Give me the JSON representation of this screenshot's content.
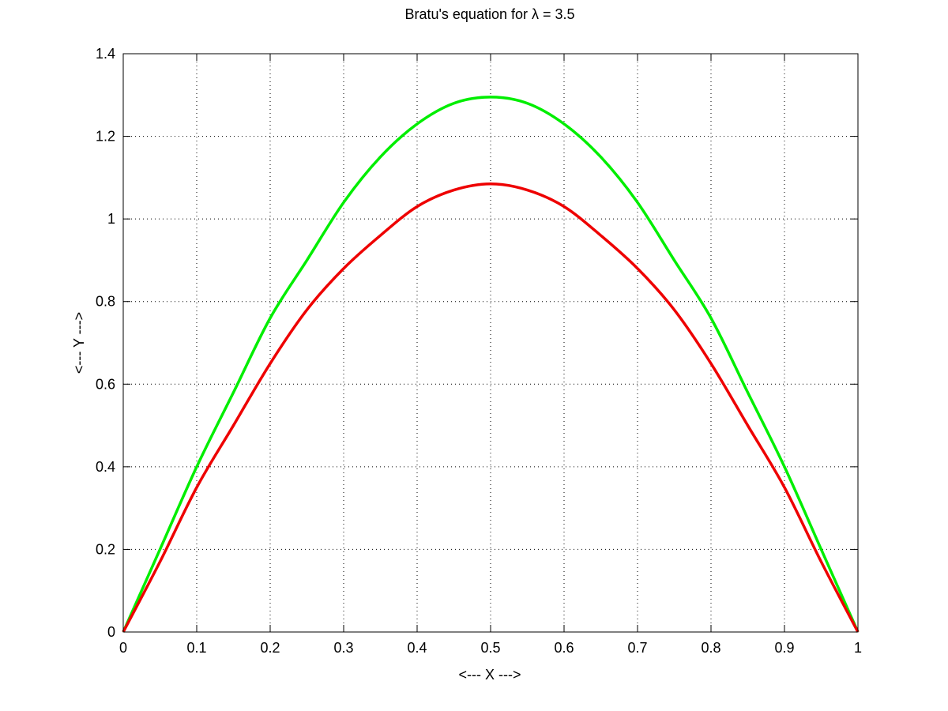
{
  "chart_data": {
    "type": "line",
    "title": "Bratu's equation for  λ = 3.5",
    "xlabel": "<--- X --->",
    "ylabel": "<--- Y --->",
    "xlim": [
      0,
      1
    ],
    "ylim": [
      0,
      1.4
    ],
    "xticks": [
      "0",
      "0.1",
      "0.2",
      "0.3",
      "0.4",
      "0.5",
      "0.6",
      "0.7",
      "0.8",
      "0.9",
      "1"
    ],
    "yticks": [
      "0",
      "0.2",
      "0.4",
      "0.6",
      "0.8",
      "1",
      "1.2",
      "1.4"
    ],
    "grid": true,
    "x": [
      0,
      0.05,
      0.1,
      0.15,
      0.2,
      0.25,
      0.3,
      0.35,
      0.4,
      0.45,
      0.5,
      0.55,
      0.6,
      0.65,
      0.7,
      0.75,
      0.8,
      0.85,
      0.9,
      0.95,
      1
    ],
    "series": [
      {
        "color": "#00ee00",
        "values": [
          0,
          0.2,
          0.4,
          0.58,
          0.76,
          0.9,
          1.04,
          1.15,
          1.23,
          1.28,
          1.295,
          1.28,
          1.23,
          1.15,
          1.04,
          0.9,
          0.76,
          0.58,
          0.4,
          0.2,
          0
        ]
      },
      {
        "color": "#ee0000",
        "values": [
          0,
          0.17,
          0.35,
          0.5,
          0.65,
          0.78,
          0.88,
          0.96,
          1.03,
          1.07,
          1.085,
          1.07,
          1.03,
          0.96,
          0.88,
          0.78,
          0.65,
          0.5,
          0.35,
          0.17,
          0
        ]
      }
    ]
  }
}
